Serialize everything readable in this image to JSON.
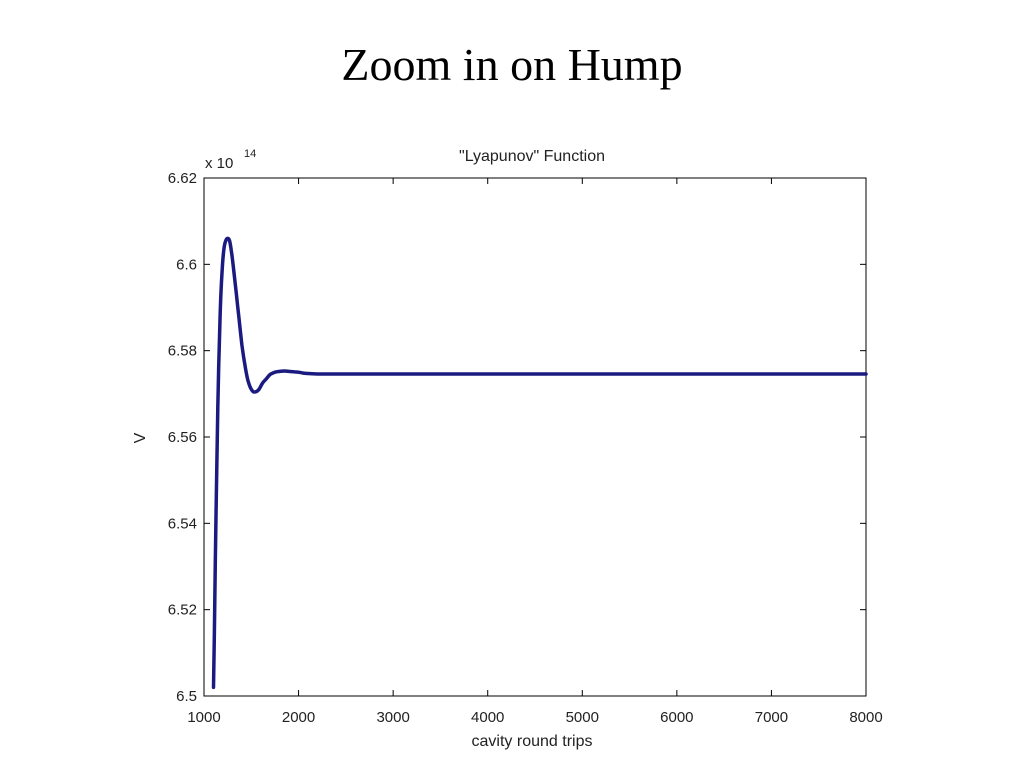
{
  "slide": {
    "title": "Zoom in on Hump"
  },
  "chart_data": {
    "type": "line",
    "title": "\"Lyapunov\" Function",
    "xlabel": "cavity round trips",
    "ylabel": "V",
    "y_multiplier_label": "x 10",
    "y_multiplier_exponent": "14",
    "xlim": [
      1000,
      8000
    ],
    "ylim": [
      6.5,
      6.62
    ],
    "x_ticks": [
      1000,
      2000,
      3000,
      4000,
      5000,
      6000,
      7000,
      8000
    ],
    "y_ticks": [
      6.5,
      6.52,
      6.54,
      6.56,
      6.58,
      6.6,
      6.62
    ],
    "x_tick_labels": [
      "1000",
      "2000",
      "3000",
      "4000",
      "5000",
      "6000",
      "7000",
      "8000"
    ],
    "y_tick_labels": [
      "6.5",
      "6.52",
      "6.54",
      "6.56",
      "6.58",
      "6.6",
      "6.62"
    ],
    "grid": false,
    "line_color": "#1a1a80",
    "series": [
      {
        "x": [
          1100,
          1110,
          1120,
          1135,
          1150,
          1170,
          1190,
          1210,
          1230,
          1250,
          1270,
          1290,
          1310,
          1340,
          1370,
          1400,
          1430,
          1460,
          1490,
          1520,
          1550,
          1580,
          1620,
          1660,
          1700,
          1750,
          1800,
          1850,
          1900,
          1950,
          2000,
          2050,
          2100,
          2200,
          2300,
          2400,
          2500,
          2600,
          2700,
          2800,
          3000,
          4000,
          5000,
          6000,
          7000,
          8000
        ],
        "y": [
          6.502,
          6.515,
          6.531,
          6.553,
          6.571,
          6.588,
          6.598,
          6.6035,
          6.6055,
          6.606,
          6.6055,
          6.603,
          6.5995,
          6.5935,
          6.5875,
          6.5815,
          6.577,
          6.5735,
          6.5715,
          6.5705,
          6.5705,
          6.571,
          6.5725,
          6.5735,
          6.5745,
          6.575,
          6.5752,
          6.5753,
          6.5752,
          6.5751,
          6.575,
          6.5748,
          6.5747,
          6.5746,
          6.5746,
          6.5746,
          6.5746,
          6.5746,
          6.5746,
          6.5746,
          6.5746,
          6.5746,
          6.5746,
          6.5746,
          6.5746,
          6.5746
        ]
      }
    ]
  }
}
